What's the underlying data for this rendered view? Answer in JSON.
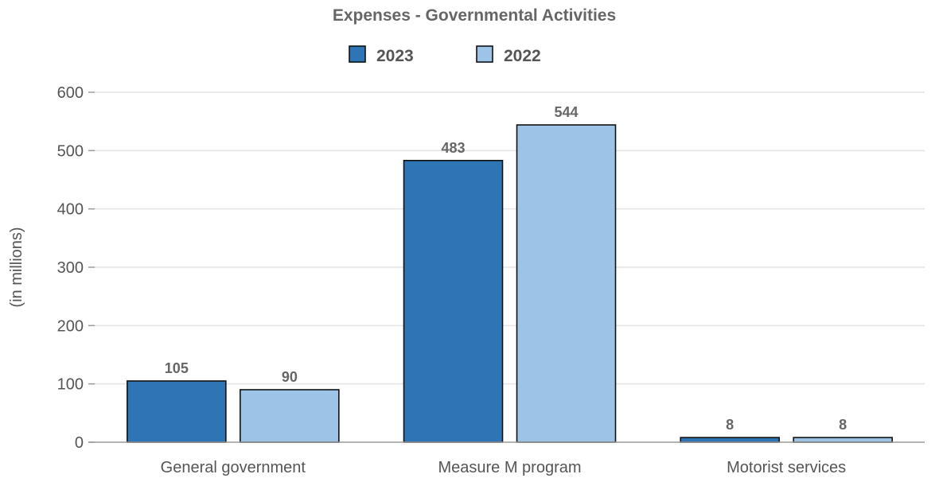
{
  "chart_data": {
    "type": "bar",
    "title": "Expenses - Governmental Activities",
    "xlabel": "",
    "ylabel": "(in millions)",
    "ylim": [
      0,
      600
    ],
    "yticks": [
      0,
      100,
      200,
      300,
      400,
      500,
      600
    ],
    "grid": true,
    "legend_position": "top",
    "categories": [
      "General government",
      "Measure M program",
      "Motorist services"
    ],
    "series": [
      {
        "name": "2023",
        "values": [
          105,
          483,
          8
        ],
        "color": "#2e75b6"
      },
      {
        "name": "2022",
        "values": [
          90,
          544,
          8
        ],
        "color": "#9dc3e6"
      }
    ],
    "data_labels": true
  }
}
